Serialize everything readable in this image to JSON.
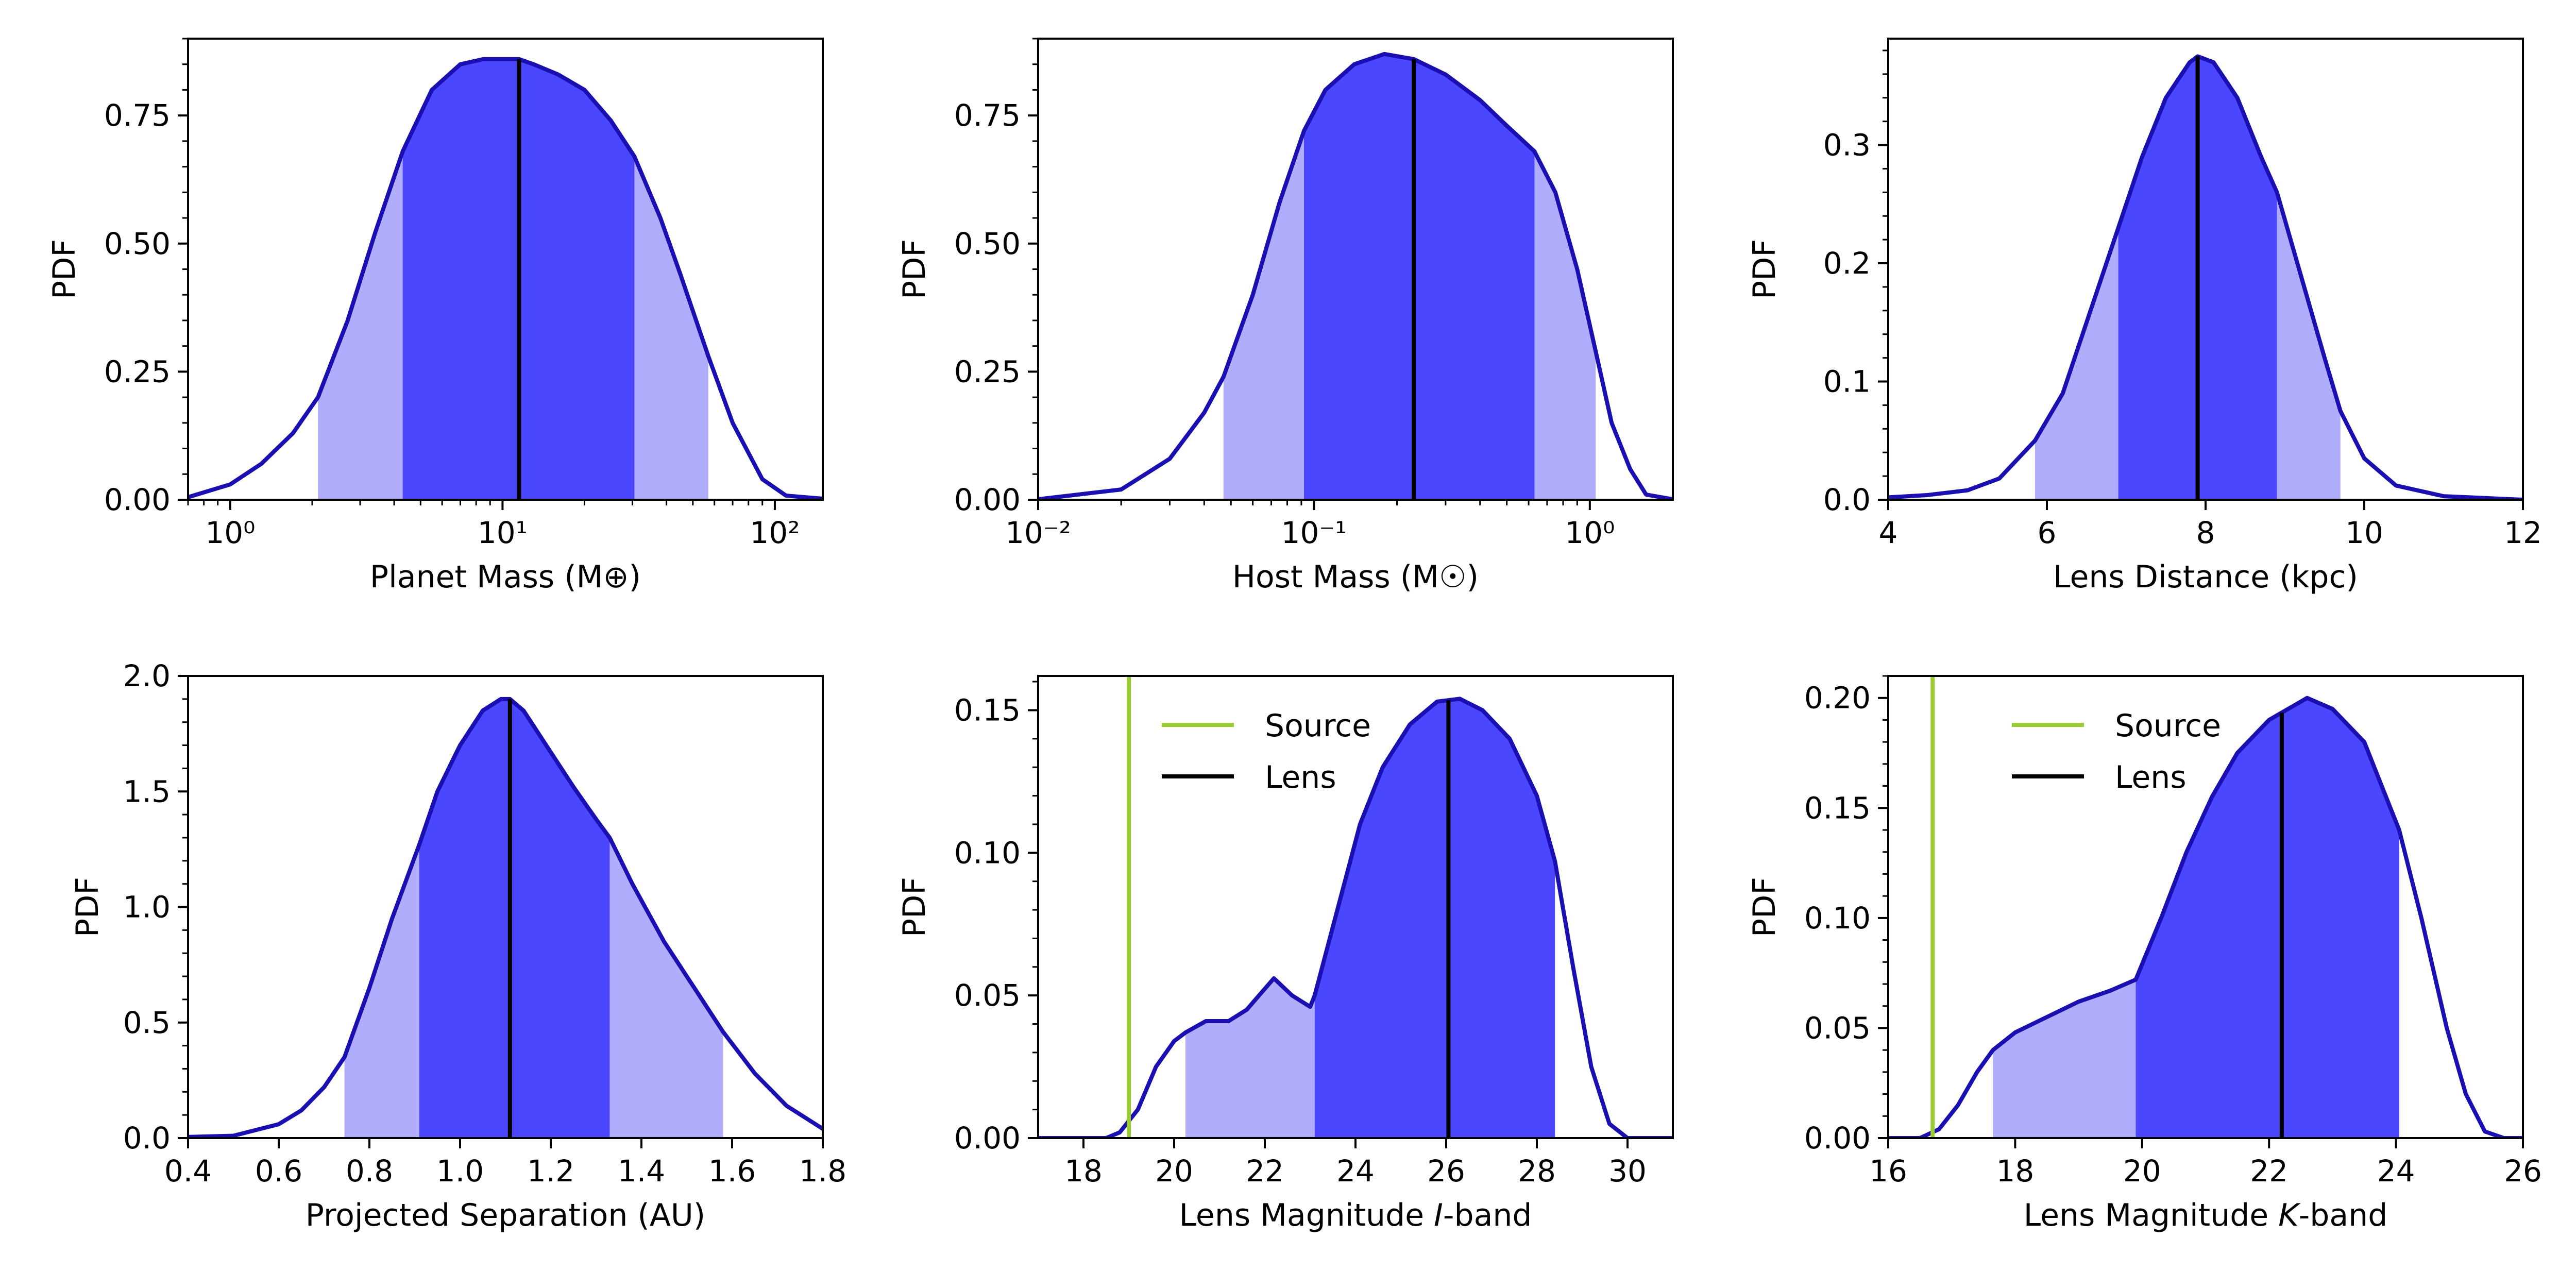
{
  "figure": {
    "ylabel_all": "PDF"
  },
  "chart_data": [
    {
      "id": "planet-mass",
      "type": "area",
      "xscale": "log",
      "xlabel": "Planet Mass (M⊕)",
      "ylabel": "PDF",
      "xlim": [
        0.7,
        150
      ],
      "ylim": [
        0,
        0.9
      ],
      "xticks": [
        1,
        10,
        100
      ],
      "xtick_labels": [
        "10⁰",
        "10¹",
        "10²"
      ],
      "yticks": [
        0,
        0.25,
        0.5,
        0.75
      ],
      "ytick_labels": [
        "0.00",
        "0.25",
        "0.50",
        "0.75"
      ],
      "median": 11.5,
      "sigma1": [
        4.3,
        30.5
      ],
      "sigma2": [
        2.1,
        57
      ],
      "curve": [
        [
          0.7,
          0.005
        ],
        [
          1.0,
          0.03
        ],
        [
          1.3,
          0.07
        ],
        [
          1.7,
          0.13
        ],
        [
          2.1,
          0.2
        ],
        [
          2.7,
          0.35
        ],
        [
          3.4,
          0.52
        ],
        [
          4.3,
          0.68
        ],
        [
          5.5,
          0.8
        ],
        [
          7,
          0.85
        ],
        [
          8.5,
          0.86
        ],
        [
          10,
          0.86
        ],
        [
          11.5,
          0.86
        ],
        [
          13,
          0.85
        ],
        [
          16,
          0.83
        ],
        [
          20,
          0.8
        ],
        [
          25,
          0.74
        ],
        [
          30.5,
          0.67
        ],
        [
          38,
          0.55
        ],
        [
          45,
          0.44
        ],
        [
          57,
          0.28
        ],
        [
          70,
          0.15
        ],
        [
          90,
          0.04
        ],
        [
          110,
          0.008
        ],
        [
          150,
          0.002
        ]
      ],
      "legend": null
    },
    {
      "id": "host-mass",
      "type": "area",
      "xscale": "log",
      "xlabel": "Host Mass (M☉)",
      "ylabel": "PDF",
      "xlim": [
        0.01,
        2
      ],
      "ylim": [
        0,
        0.9
      ],
      "xticks": [
        0.01,
        0.1,
        1
      ],
      "xtick_labels": [
        "10⁻²",
        "10⁻¹",
        "10⁰"
      ],
      "yticks": [
        0,
        0.25,
        0.5,
        0.75
      ],
      "ytick_labels": [
        "0.00",
        "0.25",
        "0.50",
        "0.75"
      ],
      "median": 0.23,
      "sigma1": [
        0.092,
        0.63
      ],
      "sigma2": [
        0.047,
        1.05
      ],
      "curve": [
        [
          0.01,
          0.001
        ],
        [
          0.02,
          0.02
        ],
        [
          0.03,
          0.08
        ],
        [
          0.04,
          0.17
        ],
        [
          0.047,
          0.24
        ],
        [
          0.06,
          0.4
        ],
        [
          0.075,
          0.58
        ],
        [
          0.092,
          0.72
        ],
        [
          0.11,
          0.8
        ],
        [
          0.14,
          0.85
        ],
        [
          0.18,
          0.87
        ],
        [
          0.23,
          0.86
        ],
        [
          0.3,
          0.83
        ],
        [
          0.4,
          0.78
        ],
        [
          0.5,
          0.73
        ],
        [
          0.63,
          0.68
        ],
        [
          0.75,
          0.6
        ],
        [
          0.9,
          0.45
        ],
        [
          1.05,
          0.29
        ],
        [
          1.2,
          0.15
        ],
        [
          1.4,
          0.06
        ],
        [
          1.6,
          0.01
        ],
        [
          2,
          0.001
        ]
      ],
      "legend": null
    },
    {
      "id": "lens-distance",
      "type": "area",
      "xscale": "linear",
      "xlabel": "Lens Distance (kpc)",
      "ylabel": "PDF",
      "xlim": [
        4,
        12
      ],
      "ylim": [
        0,
        0.39
      ],
      "xticks": [
        4,
        6,
        8,
        10,
        12
      ],
      "xtick_labels": [
        "4",
        "6",
        "8",
        "10",
        "12"
      ],
      "yticks": [
        0,
        0.1,
        0.2,
        0.3
      ],
      "ytick_labels": [
        "0.0",
        "0.1",
        "0.2",
        "0.3"
      ],
      "median": 7.9,
      "sigma1": [
        6.9,
        8.9
      ],
      "sigma2": [
        5.85,
        9.7
      ],
      "curve": [
        [
          4,
          0.002
        ],
        [
          4.5,
          0.004
        ],
        [
          5,
          0.008
        ],
        [
          5.4,
          0.018
        ],
        [
          5.85,
          0.05
        ],
        [
          6.2,
          0.09
        ],
        [
          6.6,
          0.17
        ],
        [
          6.9,
          0.23
        ],
        [
          7.2,
          0.29
        ],
        [
          7.5,
          0.34
        ],
        [
          7.8,
          0.37
        ],
        [
          7.9,
          0.375
        ],
        [
          8.1,
          0.37
        ],
        [
          8.4,
          0.34
        ],
        [
          8.7,
          0.29
        ],
        [
          8.9,
          0.26
        ],
        [
          9.2,
          0.19
        ],
        [
          9.5,
          0.12
        ],
        [
          9.7,
          0.075
        ],
        [
          10,
          0.035
        ],
        [
          10.4,
          0.012
        ],
        [
          11,
          0.003
        ],
        [
          12,
          0.0
        ]
      ],
      "legend": null
    },
    {
      "id": "projected-separation",
      "type": "area",
      "xscale": "linear",
      "xlabel": "Projected Separation (AU)",
      "ylabel": "PDF",
      "xlim": [
        0.4,
        1.8
      ],
      "ylim": [
        0,
        2.0
      ],
      "xticks": [
        0.4,
        0.6,
        0.8,
        1.0,
        1.2,
        1.4,
        1.6,
        1.8
      ],
      "xtick_labels": [
        "0.4",
        "0.6",
        "0.8",
        "1.0",
        "1.2",
        "1.4",
        "1.6",
        "1.8"
      ],
      "yticks": [
        0,
        0.5,
        1.0,
        1.5,
        2.0
      ],
      "ytick_labels": [
        "0.0",
        "0.5",
        "1.0",
        "1.5",
        "2.0"
      ],
      "median": 1.11,
      "sigma1": [
        0.91,
        1.33
      ],
      "sigma2": [
        0.745,
        1.58
      ],
      "curve": [
        [
          0.4,
          0.005
        ],
        [
          0.5,
          0.01
        ],
        [
          0.6,
          0.06
        ],
        [
          0.65,
          0.12
        ],
        [
          0.7,
          0.22
        ],
        [
          0.745,
          0.35
        ],
        [
          0.8,
          0.65
        ],
        [
          0.85,
          0.95
        ],
        [
          0.91,
          1.27
        ],
        [
          0.95,
          1.5
        ],
        [
          1.0,
          1.7
        ],
        [
          1.05,
          1.85
        ],
        [
          1.09,
          1.9
        ],
        [
          1.11,
          1.9
        ],
        [
          1.14,
          1.85
        ],
        [
          1.2,
          1.67
        ],
        [
          1.25,
          1.52
        ],
        [
          1.3,
          1.38
        ],
        [
          1.33,
          1.3
        ],
        [
          1.38,
          1.1
        ],
        [
          1.45,
          0.85
        ],
        [
          1.5,
          0.7
        ],
        [
          1.58,
          0.46
        ],
        [
          1.65,
          0.28
        ],
        [
          1.72,
          0.14
        ],
        [
          1.8,
          0.04
        ]
      ],
      "legend": null
    },
    {
      "id": "lens-mag-i",
      "type": "area",
      "xscale": "linear",
      "xlabel": "Lens Magnitude I-band",
      "xlabel_parts": [
        "Lens Magnitude ",
        "I",
        "-band"
      ],
      "ylabel": "PDF",
      "xlim": [
        17,
        31
      ],
      "ylim": [
        0,
        0.162
      ],
      "xticks": [
        18,
        20,
        22,
        24,
        26,
        28,
        30
      ],
      "xtick_labels": [
        "18",
        "20",
        "22",
        "24",
        "26",
        "28",
        "30"
      ],
      "yticks": [
        0,
        0.05,
        0.1,
        0.15
      ],
      "ytick_labels": [
        "0.00",
        "0.05",
        "0.10",
        "0.15"
      ],
      "median": 26.05,
      "sigma1": [
        23.1,
        28.4
      ],
      "sigma2": [
        20.25,
        28.4
      ],
      "source_line": 19.0,
      "curve": [
        [
          17,
          0.0
        ],
        [
          18.5,
          0.0
        ],
        [
          18.8,
          0.002
        ],
        [
          19.2,
          0.01
        ],
        [
          19.6,
          0.025
        ],
        [
          20.0,
          0.034
        ],
        [
          20.25,
          0.037
        ],
        [
          20.7,
          0.041
        ],
        [
          21.2,
          0.041
        ],
        [
          21.6,
          0.045
        ],
        [
          22.2,
          0.056
        ],
        [
          22.6,
          0.05
        ],
        [
          23.0,
          0.046
        ],
        [
          23.1,
          0.05
        ],
        [
          23.6,
          0.08
        ],
        [
          24.1,
          0.11
        ],
        [
          24.6,
          0.13
        ],
        [
          25.2,
          0.145
        ],
        [
          25.8,
          0.153
        ],
        [
          26.3,
          0.154
        ],
        [
          26.8,
          0.15
        ],
        [
          27.4,
          0.14
        ],
        [
          28.0,
          0.12
        ],
        [
          28.4,
          0.097
        ],
        [
          28.8,
          0.06
        ],
        [
          29.2,
          0.025
        ],
        [
          29.6,
          0.005
        ],
        [
          30.0,
          0.0
        ],
        [
          31,
          0.0
        ]
      ],
      "legend": {
        "source": "Source",
        "lens": "Lens"
      }
    },
    {
      "id": "lens-mag-k",
      "type": "area",
      "xscale": "linear",
      "xlabel": "Lens Magnitude K-band",
      "xlabel_parts": [
        "Lens Magnitude ",
        "K",
        "-band"
      ],
      "ylabel": "PDF",
      "xlim": [
        16,
        26
      ],
      "ylim": [
        0,
        0.21
      ],
      "xticks": [
        16,
        18,
        20,
        22,
        24,
        26
      ],
      "xtick_labels": [
        "16",
        "18",
        "20",
        "22",
        "24",
        "26"
      ],
      "yticks": [
        0,
        0.05,
        0.1,
        0.15,
        0.2
      ],
      "ytick_labels": [
        "0.00",
        "0.05",
        "0.10",
        "0.15",
        "0.20"
      ],
      "median": 22.2,
      "sigma1": [
        19.9,
        24.05
      ],
      "sigma2": [
        17.65,
        24.05
      ],
      "source_line": 16.7,
      "curve": [
        [
          16,
          0.0
        ],
        [
          16.5,
          0.0
        ],
        [
          16.8,
          0.004
        ],
        [
          17.1,
          0.015
        ],
        [
          17.4,
          0.03
        ],
        [
          17.65,
          0.04
        ],
        [
          18,
          0.048
        ],
        [
          18.5,
          0.055
        ],
        [
          19,
          0.062
        ],
        [
          19.5,
          0.067
        ],
        [
          19.9,
          0.072
        ],
        [
          20.3,
          0.1
        ],
        [
          20.7,
          0.13
        ],
        [
          21.1,
          0.155
        ],
        [
          21.5,
          0.175
        ],
        [
          22,
          0.19
        ],
        [
          22.6,
          0.2
        ],
        [
          23,
          0.195
        ],
        [
          23.5,
          0.18
        ],
        [
          24.05,
          0.14
        ],
        [
          24.4,
          0.1
        ],
        [
          24.8,
          0.05
        ],
        [
          25.1,
          0.02
        ],
        [
          25.4,
          0.003
        ],
        [
          25.7,
          0.0
        ],
        [
          26,
          0.0
        ]
      ],
      "legend": {
        "source": "Source",
        "lens": "Lens"
      }
    }
  ],
  "colors": {
    "curve": "#1a0fb0",
    "sigma1_fill": "#4b46ff",
    "sigma2_fill": "#b0aefc",
    "median": "#000000",
    "source_line": "#9acd32"
  }
}
